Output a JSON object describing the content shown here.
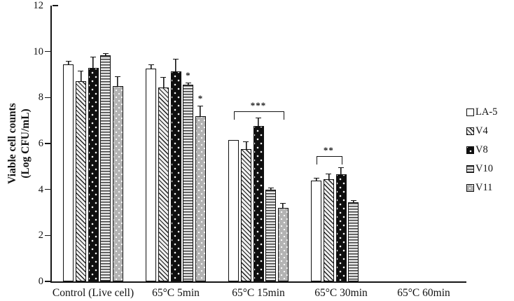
{
  "chart_data": {
    "type": "bar",
    "title": "",
    "ylabel_line1": "Viable cell counts",
    "ylabel_line2": "(Log CFU/mL)",
    "xlabel": "",
    "ylim": [
      0,
      12
    ],
    "yticks": [
      0,
      2,
      4,
      6,
      8,
      10,
      12
    ],
    "grid": false,
    "legend_position": "right-outside",
    "categories": [
      "Control (Live cell)",
      "65°C 5min",
      "65°C 15min",
      "65°C 30min",
      "65°C 60min"
    ],
    "series": [
      {
        "name": "LA-5",
        "pattern": "white-open",
        "values": [
          9.45,
          9.25,
          6.15,
          4.4,
          null
        ],
        "errors": [
          0.1,
          0.15,
          0,
          0.08,
          null
        ],
        "sig": [
          null,
          null,
          null,
          null,
          null
        ]
      },
      {
        "name": "V4",
        "pattern": "diagonal-hatch",
        "values": [
          8.7,
          8.45,
          5.75,
          4.45,
          null
        ],
        "errors": [
          0.45,
          0.4,
          0.3,
          0.2,
          null
        ],
        "sig": [
          null,
          null,
          null,
          null,
          null
        ]
      },
      {
        "name": "V8",
        "pattern": "black-white-dots",
        "values": [
          9.3,
          9.15,
          6.75,
          4.65,
          null
        ],
        "errors": [
          0.45,
          0.5,
          0.35,
          0.27,
          null
        ],
        "sig": [
          null,
          null,
          null,
          null,
          null
        ]
      },
      {
        "name": "V10",
        "pattern": "horizontal-lines",
        "values": [
          9.85,
          8.55,
          4.0,
          3.45,
          null
        ],
        "errors": [
          0.05,
          0.08,
          0.06,
          0.05,
          null
        ],
        "sig": [
          null,
          "*",
          null,
          null,
          null
        ]
      },
      {
        "name": "V11",
        "pattern": "gray-white-dots",
        "values": [
          8.5,
          7.2,
          3.2,
          null,
          null
        ],
        "errors": [
          0.4,
          0.4,
          0.18,
          null,
          null
        ],
        "sig": [
          null,
          "*",
          null,
          null,
          null
        ]
      }
    ],
    "significance_brackets": [
      {
        "category_index": 2,
        "from_series": 0,
        "to_series": 4,
        "label": "***",
        "y_value": 7.4
      },
      {
        "category_index": 3,
        "from_series": 0,
        "to_series": 2,
        "label": "**",
        "y_value": 5.45
      }
    ]
  },
  "legend": {
    "items": [
      {
        "label": "LA-5",
        "pattern": "white-open"
      },
      {
        "label": "V4",
        "pattern": "diagonal-hatch"
      },
      {
        "label": "V8",
        "pattern": "black-white-dots"
      },
      {
        "label": "V10",
        "pattern": "horizontal-lines"
      },
      {
        "label": "V11",
        "pattern": "gray-white-dots"
      }
    ]
  },
  "colors": {
    "ink": "#111111",
    "bar_black": "#0f0f0f",
    "bar_gray": "#b3b3b3",
    "background": "#ffffff"
  }
}
